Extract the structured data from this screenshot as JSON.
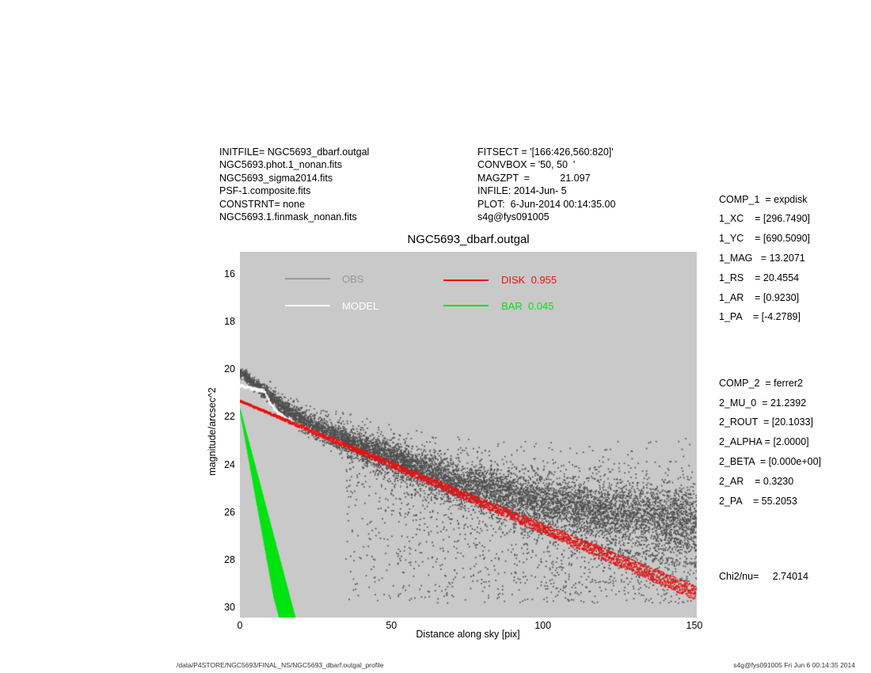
{
  "files_block": {
    "lines": [
      "INITFILE= NGC5693_dbarf.outgal",
      "NGC5693.phot.1_nonan.fits",
      "NGC5693_sigma2014.fits",
      "PSF-1.composite.fits",
      "CONSTRNT= none",
      "NGC5693.1.finmask_nonan.fits"
    ]
  },
  "fit_block": {
    "lines": [
      "FITSECT = '[166:426,560:820]'",
      "CONVBOX = '50, 50  '",
      "MAGZPT  =           21.097",
      "INFILE: 2014-Jun- 5",
      "PLOT:  6-Jun-2014 00:14:35.00",
      "s4g@fys091005"
    ]
  },
  "params_panel": {
    "comp1": [
      "COMP_1  = expdisk",
      "1_XC    = [296.7490]",
      "1_YC    = [690.5090]",
      "1_MAG   = 13.2071",
      "1_RS    = 20.4554",
      "1_AR    = [0.9230]",
      "1_PA    = [-4.2789]"
    ],
    "comp2": [
      "COMP_2  = ferrer2",
      "2_MU_0  = 21.2392",
      "2_ROUT  = [20.1033]",
      "2_ALPHA = [2.0000]",
      "2_BETA  = [0.000e+00]",
      "2_AR    = 0.3230",
      "2_PA    = 55.2053"
    ],
    "chi2": "Chi2/nu=     2.74014"
  },
  "footer": {
    "left": "/data/P4STORE/NGC5693/FINAL_NS/NGC5693_dbarf.outgal_profile",
    "right": "s4g@fys091005  Fri Jun  6 00:14:35 2014"
  },
  "chart_data": {
    "type": "scatter",
    "title": "NGC5693_dbarf.outgal",
    "xlabel": "Distance along sky [pix]",
    "ylabel": "magnitude/arcsec^2",
    "plot_bg": "#c9c9c9",
    "y_axis_inverted": true,
    "xlim": [
      0,
      150.8
    ],
    "ylim": [
      15.04,
      30.39
    ],
    "xticks": [
      0,
      50,
      100,
      150
    ],
    "yticks": [
      16,
      18,
      20,
      22,
      24,
      26,
      28,
      30
    ],
    "legend": [
      {
        "label": "OBS",
        "color": "#989898"
      },
      {
        "label": "MODEL",
        "color": "#ffffff"
      },
      {
        "label": "DISK  0.955",
        "color": "#e81212"
      },
      {
        "label": "BAR  0.045",
        "color": "#00e414"
      }
    ],
    "series": [
      {
        "name": "OBS",
        "kind": "scatter-cloud",
        "color": "#4e4e4e",
        "centerline": [
          [
            0,
            20.1
          ],
          [
            5,
            20.6
          ],
          [
            10,
            21.1
          ],
          [
            15,
            21.6
          ],
          [
            20,
            22.05
          ],
          [
            25,
            22.4
          ],
          [
            30,
            22.7
          ],
          [
            35,
            22.95
          ],
          [
            40,
            23.2
          ],
          [
            50,
            23.7
          ],
          [
            60,
            24.2
          ],
          [
            70,
            24.65
          ],
          [
            80,
            25.0
          ],
          [
            90,
            25.3
          ],
          [
            100,
            25.55
          ],
          [
            110,
            25.75
          ],
          [
            120,
            25.95
          ],
          [
            130,
            26.1
          ],
          [
            140,
            26.25
          ],
          [
            150,
            26.4
          ]
        ],
        "sigma0": 0.1,
        "sigma_slope": 0.005,
        "n_core": 9000,
        "n_outliers_low": 1150,
        "n_outliers_high": 170,
        "outlier_mag_floor": 29.8
      },
      {
        "name": "MODEL",
        "kind": "dotted-curve",
        "color": "#ffffff",
        "disk_mu0": 21.3,
        "disk_slope": 0.0535,
        "bar_mu0": 21.55,
        "bar_break_r": 8,
        "bar_slope": 0.49,
        "r_max": 34
      },
      {
        "name": "DISK",
        "kind": "dotted-line-band",
        "fraction": 0.955,
        "color": "#e81212",
        "mu0": 21.3,
        "slope": 0.0535,
        "r_range": [
          0,
          150.5
        ],
        "jitter0": 0.035,
        "jitter_slope": 0.00185
      },
      {
        "name": "BAR",
        "kind": "fan",
        "fraction": 0.045,
        "color": "#00e414",
        "mu_top": 21.65,
        "top_tilt": 0.035,
        "r_per_mag": 2.08,
        "offset_max": 11.2,
        "n_tracks": 56,
        "mu_bottom": 30.45
      }
    ]
  }
}
